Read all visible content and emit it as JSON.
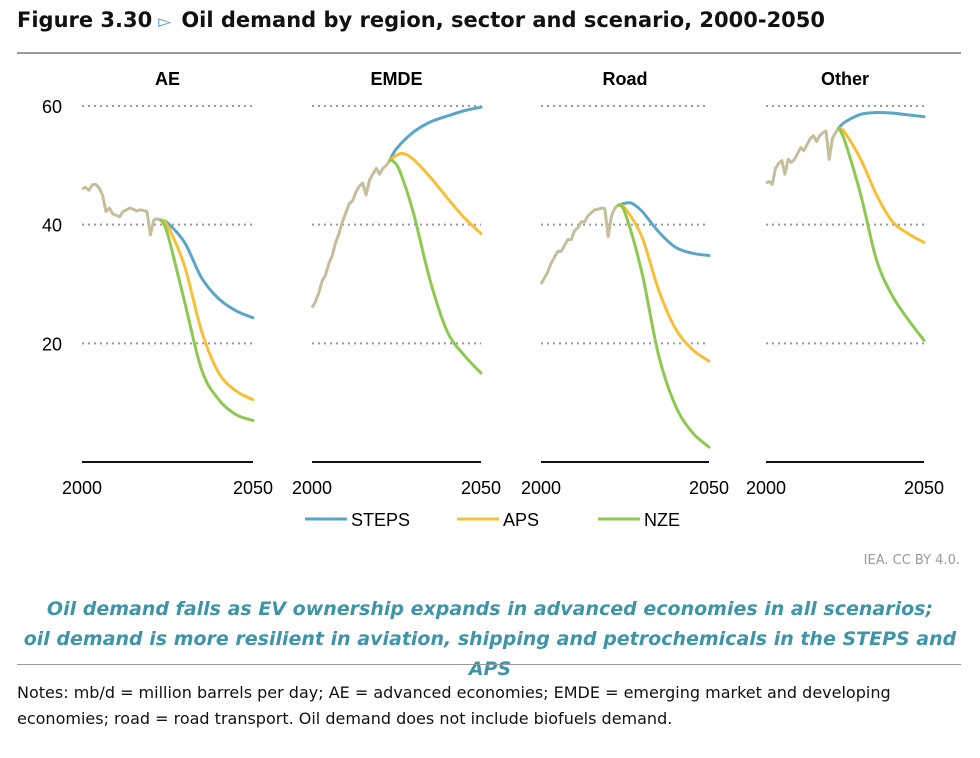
{
  "figure": {
    "number": "Figure 3.30",
    "marker": "▻",
    "title": "Oil demand by region, sector and scenario, 2000-2050"
  },
  "credit": "IEA. CC BY 4.0.",
  "caption": [
    "Oil demand falls as EV ownership expands in advanced economies in all scenarios;",
    "oil demand is more resilient in aviation, shipping and petrochemicals in the STEPS and APS"
  ],
  "notes": "Notes: mb/d = million barrels per day; AE = advanced economies; EMDE = emerging market and developing economies; road = road transport. Oil demand does not include biofuels demand.",
  "chart_data": {
    "type": "line",
    "unit": "mb/d",
    "ylim": [
      0,
      60
    ],
    "yticks": [
      20,
      40,
      60
    ],
    "xlim": [
      2000,
      2050
    ],
    "xtick_labels": [
      "2000",
      "2050"
    ],
    "grid": true,
    "legend_position": "bottom",
    "colors": {
      "historical": "#c6bd9b",
      "STEPS": "#5aa6c6",
      "APS": "#f7bf38",
      "NZE": "#8dc950"
    },
    "legend": [
      "STEPS",
      "APS",
      "NZE"
    ],
    "panels": [
      {
        "title": "AE",
        "historical": {
          "x": [
            2000,
            2001,
            2002,
            2003,
            2004,
            2005,
            2006,
            2007,
            2008,
            2009,
            2010,
            2011,
            2012,
            2013,
            2014,
            2015,
            2016,
            2017,
            2018,
            2019,
            2020,
            2021,
            2022,
            2023
          ],
          "y": [
            46,
            46.3,
            45.8,
            46.7,
            46.8,
            46.2,
            45,
            42.2,
            42.8,
            41.8,
            41.6,
            41.3,
            42.2,
            42.5,
            42.8,
            42.6,
            42.3,
            42.5,
            42.4,
            42.2,
            38.3,
            40.8,
            41,
            40.8
          ]
        },
        "STEPS": {
          "x": [
            2023,
            2025,
            2030,
            2035,
            2040,
            2045,
            2050
          ],
          "y": [
            40.8,
            40.3,
            37,
            31,
            27.5,
            25.5,
            24.3
          ]
        },
        "APS": {
          "x": [
            2023,
            2025,
            2030,
            2035,
            2040,
            2045,
            2050
          ],
          "y": [
            40.8,
            39.8,
            33,
            22,
            15,
            12,
            10.5
          ]
        },
        "NZE": {
          "x": [
            2023,
            2025,
            2030,
            2035,
            2040,
            2045,
            2050
          ],
          "y": [
            40.8,
            38.5,
            27,
            15.5,
            10.5,
            8,
            7
          ]
        }
      },
      {
        "title": "EMDE",
        "historical": {
          "x": [
            2000,
            2001,
            2002,
            2003,
            2004,
            2005,
            2006,
            2007,
            2008,
            2009,
            2010,
            2011,
            2012,
            2013,
            2014,
            2015,
            2016,
            2017,
            2018,
            2019,
            2020,
            2021,
            2022,
            2023
          ],
          "y": [
            26,
            27,
            28.5,
            30.5,
            31.5,
            33.5,
            34.8,
            37,
            38.5,
            40.5,
            42,
            43.5,
            44,
            45.5,
            46.5,
            47,
            45,
            47.5,
            48.5,
            49.5,
            48.5,
            49.5,
            50,
            50.8
          ]
        },
        "STEPS": {
          "x": [
            2023,
            2025,
            2030,
            2035,
            2040,
            2045,
            2050
          ],
          "y": [
            50.8,
            52.8,
            55.6,
            57.3,
            58.3,
            59.2,
            59.8
          ]
        },
        "APS": {
          "x": [
            2023,
            2025,
            2027,
            2030,
            2035,
            2040,
            2045,
            2050
          ],
          "y": [
            50.8,
            51.7,
            52,
            51,
            48,
            44.5,
            41.2,
            38.5
          ]
        },
        "NZE": {
          "x": [
            2023,
            2024,
            2026,
            2030,
            2035,
            2040,
            2045,
            2050
          ],
          "y": [
            50.8,
            50.7,
            49,
            42,
            30.5,
            22,
            18,
            15
          ]
        }
      },
      {
        "title": "Road",
        "historical": {
          "x": [
            2000,
            2001,
            2002,
            2003,
            2004,
            2005,
            2006,
            2007,
            2008,
            2009,
            2010,
            2011,
            2012,
            2013,
            2014,
            2015,
            2016,
            2017,
            2018,
            2019,
            2020,
            2021,
            2022,
            2023
          ],
          "y": [
            30,
            31,
            32,
            33.5,
            34.5,
            35.5,
            35.5,
            36.5,
            37.5,
            37.5,
            39,
            39.5,
            40.5,
            40.5,
            41.5,
            42,
            42.5,
            42.6,
            42.8,
            42.7,
            38,
            41.5,
            42.8,
            43.3
          ]
        },
        "STEPS": {
          "x": [
            2023,
            2025,
            2027,
            2030,
            2035,
            2040,
            2045,
            2050
          ],
          "y": [
            43.3,
            43.6,
            43.6,
            42.3,
            38.8,
            36.2,
            35.2,
            34.8
          ]
        },
        "APS": {
          "x": [
            2023,
            2025,
            2030,
            2035,
            2040,
            2045,
            2050
          ],
          "y": [
            43.3,
            42.8,
            38,
            29,
            22.5,
            19,
            17
          ]
        },
        "NZE": {
          "x": [
            2023,
            2025,
            2030,
            2035,
            2040,
            2045,
            2050
          ],
          "y": [
            43.3,
            42,
            32,
            18,
            9.5,
            5,
            2.5
          ]
        }
      },
      {
        "title": "Other",
        "historical": {
          "x": [
            2000,
            2001,
            2002,
            2003,
            2004,
            2005,
            2006,
            2007,
            2008,
            2009,
            2010,
            2011,
            2012,
            2013,
            2014,
            2015,
            2016,
            2017,
            2018,
            2019,
            2020,
            2021,
            2022,
            2023
          ],
          "y": [
            47,
            47.3,
            46.8,
            49.5,
            50.3,
            50.8,
            48.5,
            51,
            50.5,
            51,
            52,
            53,
            52.5,
            53.5,
            54.5,
            55,
            54,
            55,
            55.5,
            55.8,
            51,
            54.5,
            55.5,
            56.3
          ]
        },
        "STEPS": {
          "x": [
            2023,
            2025,
            2030,
            2035,
            2040,
            2045,
            2050
          ],
          "y": [
            56.3,
            57.3,
            58.6,
            58.9,
            58.8,
            58.5,
            58.2
          ]
        },
        "APS": {
          "x": [
            2023,
            2025,
            2030,
            2035,
            2040,
            2045,
            2050
          ],
          "y": [
            56.3,
            55.5,
            51,
            45,
            40.5,
            38.5,
            37
          ]
        },
        "NZE": {
          "x": [
            2023,
            2025,
            2030,
            2035,
            2040,
            2045,
            2050
          ],
          "y": [
            56.3,
            54,
            45,
            34,
            28,
            24,
            20.5
          ]
        }
      }
    ]
  }
}
